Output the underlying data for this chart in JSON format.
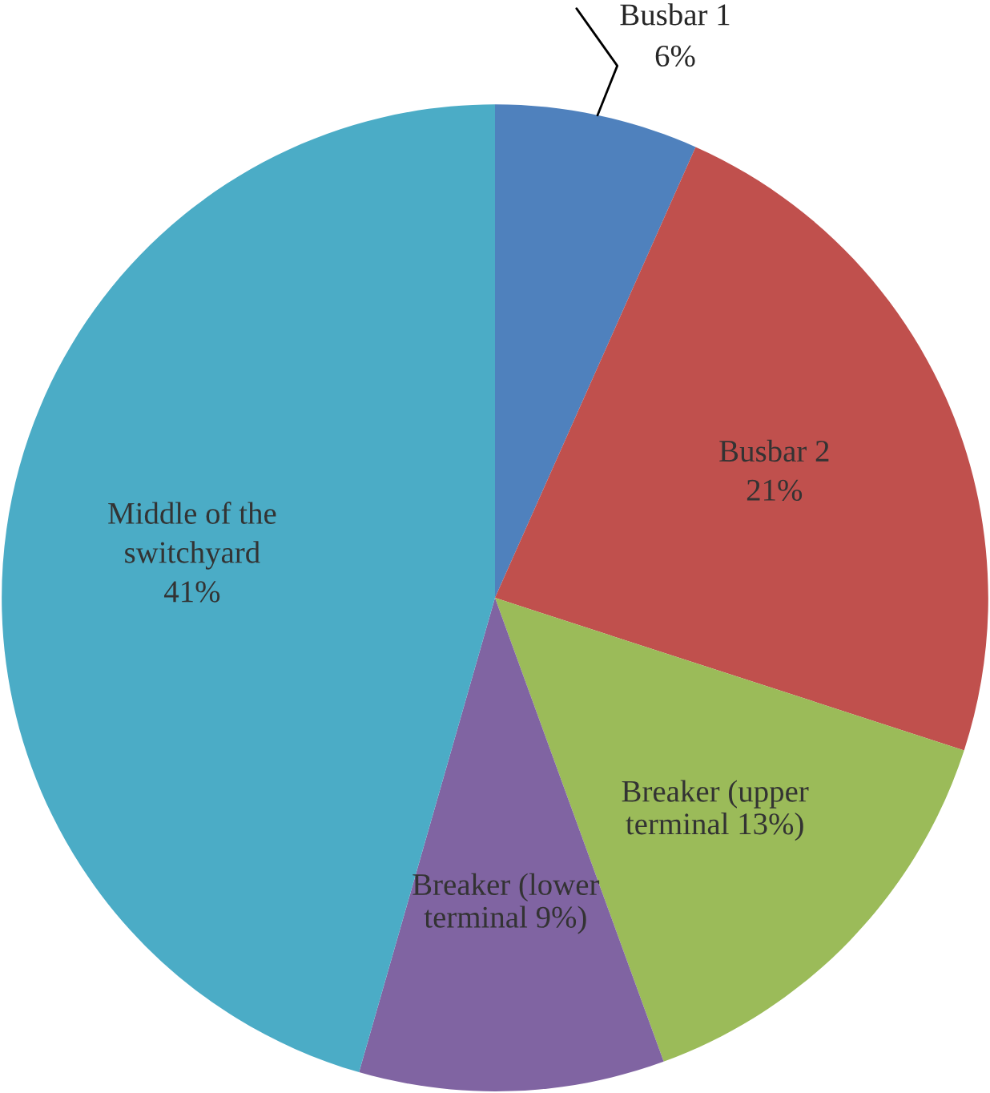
{
  "chart_data": {
    "type": "pie",
    "categories": [
      "Busbar 1",
      "Busbar 2",
      "Breaker (upper terminal 13%)",
      "Breaker (lower terminal 9%)",
      "Middle of the switchyard"
    ],
    "values": [
      6,
      21,
      13,
      9,
      41
    ],
    "value_labels": [
      "6%",
      "21%",
      null,
      null,
      "41%"
    ],
    "colors": [
      "#4f81bd",
      "#c0504d",
      "#9bbb59",
      "#8064a2",
      "#4bacc6"
    ],
    "legend": false
  }
}
